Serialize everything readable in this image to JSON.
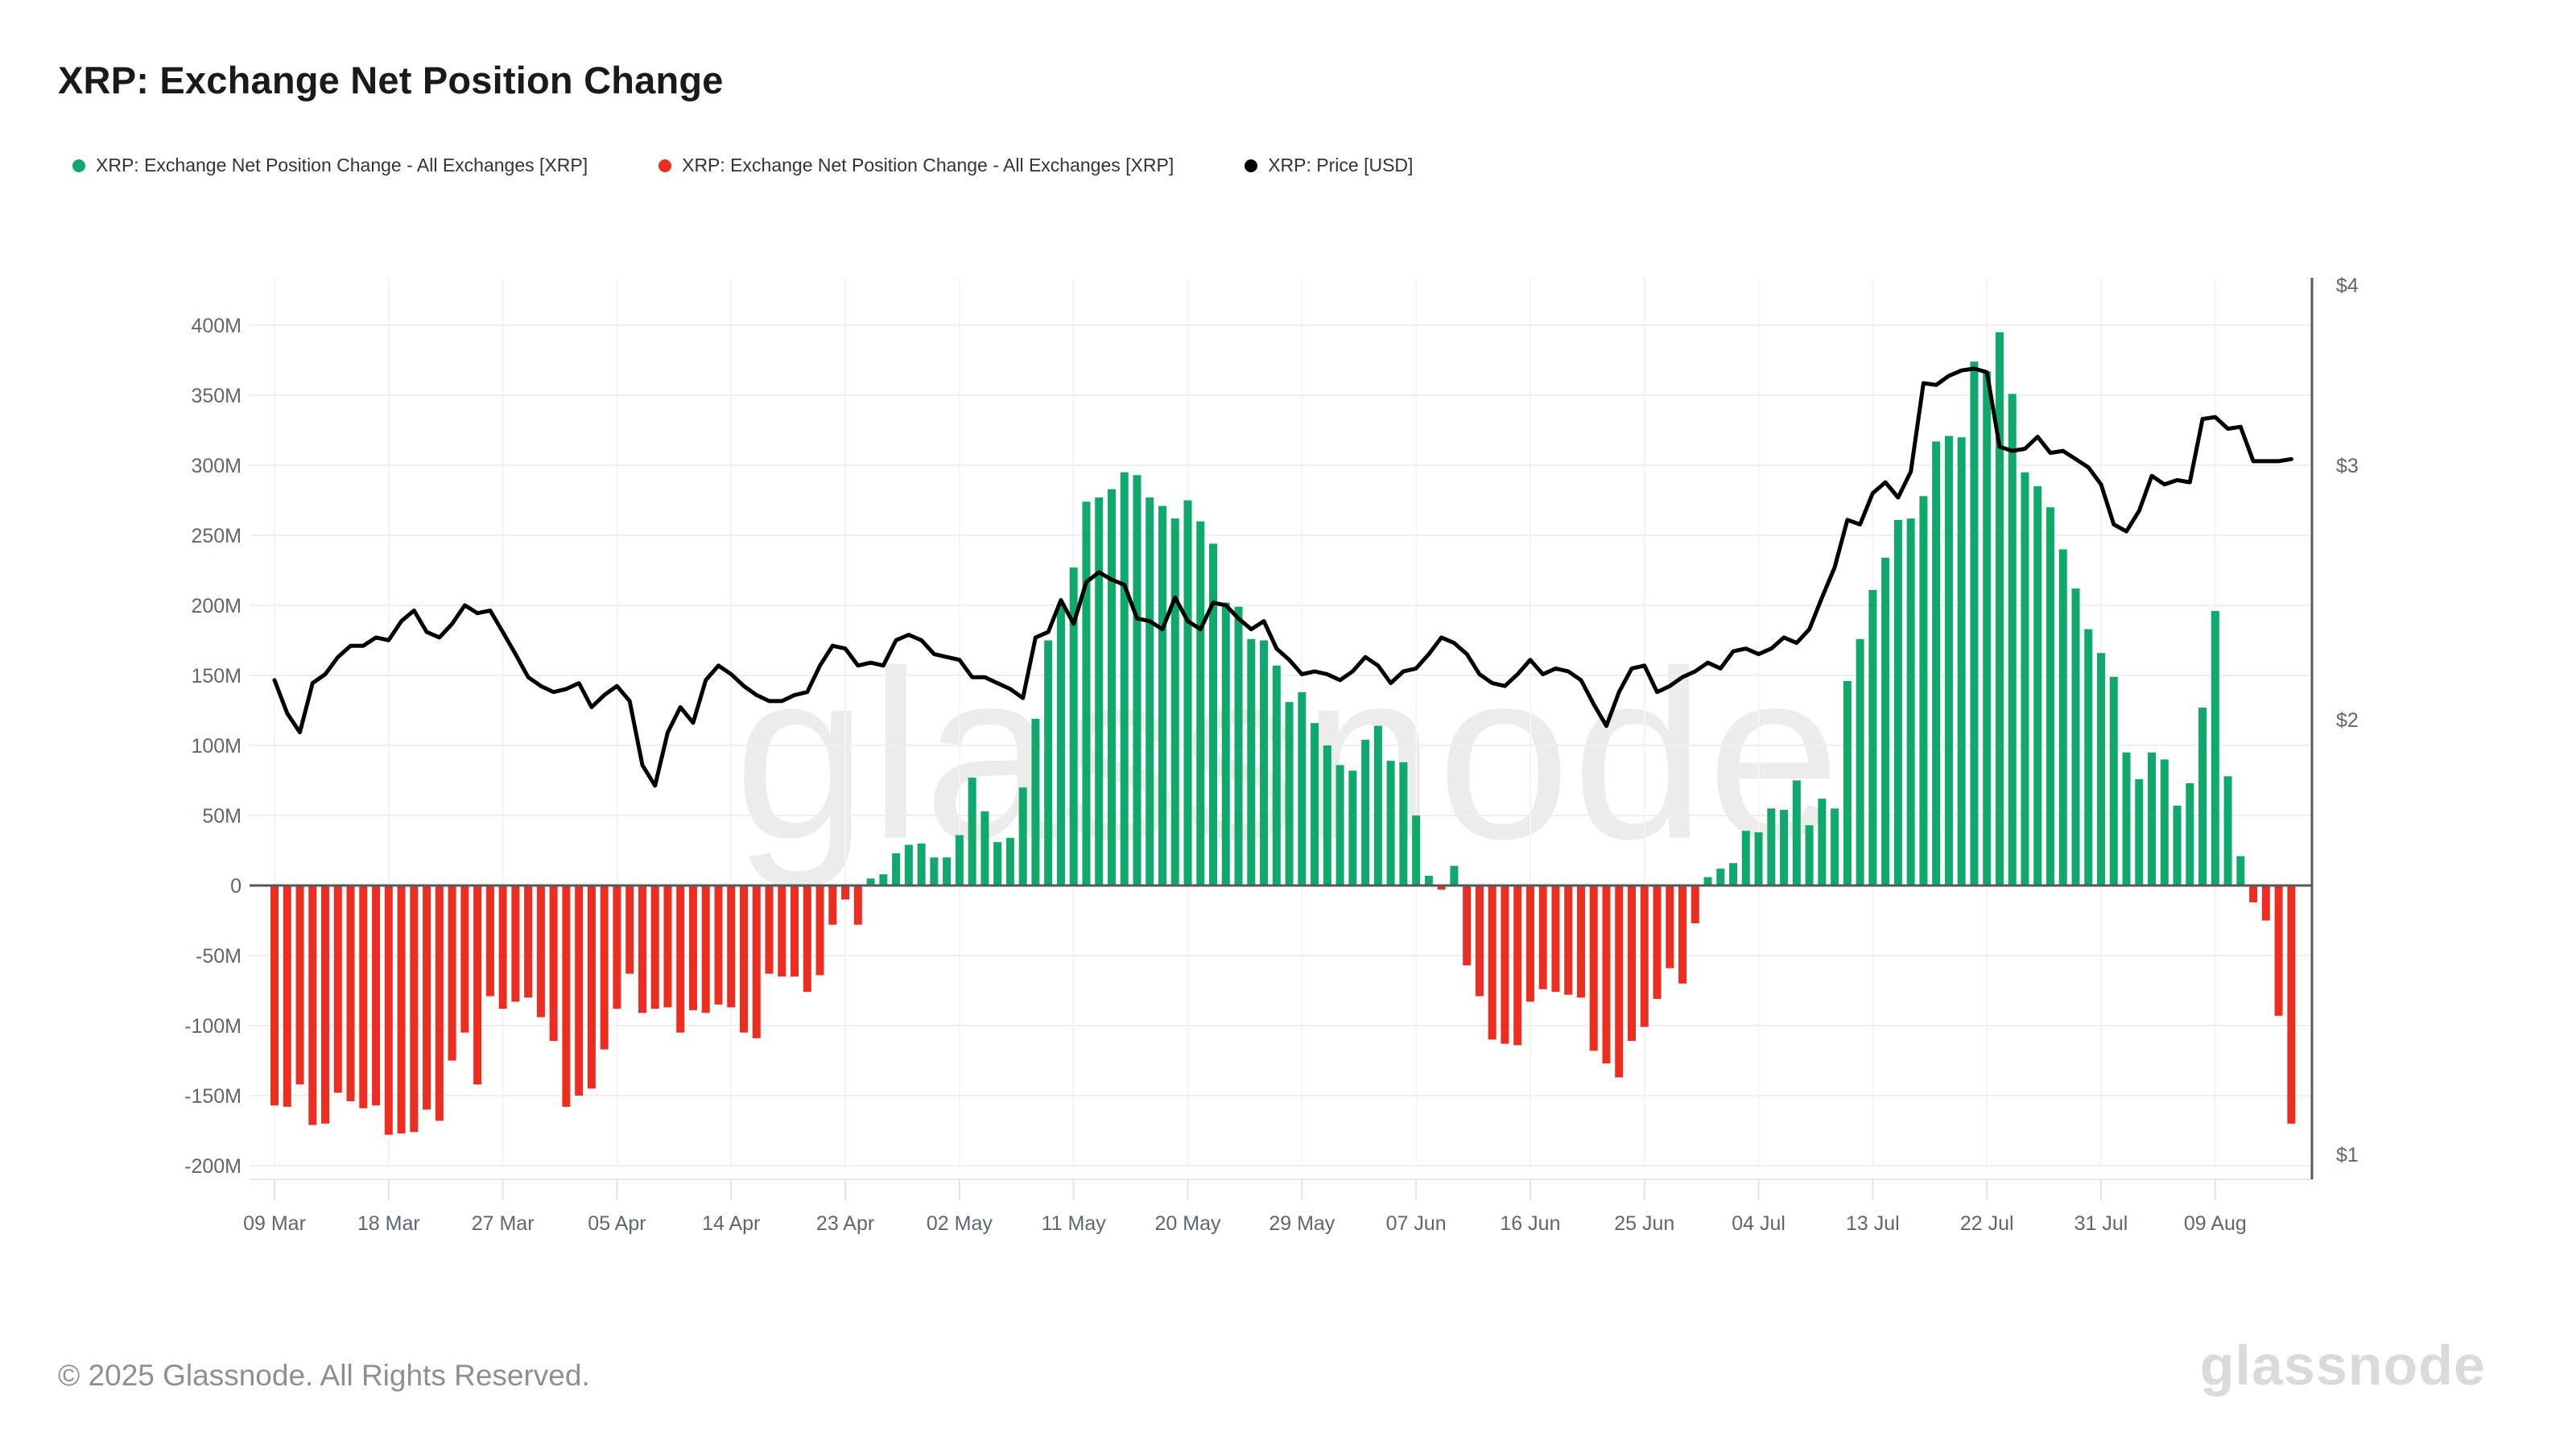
{
  "page": {
    "title": "XRP: Exchange Net Position Change",
    "footer": "© 2025 Glassnode. All Rights Reserved.",
    "watermark": "glassnode",
    "logo": "glassnode"
  },
  "legend": [
    {
      "label": "XRP: Exchange Net Position Change - All Exchanges [XRP]",
      "color": "#0fa96b"
    },
    {
      "label": "XRP: Exchange Net Position Change - All Exchanges [XRP]",
      "color": "#ee2d21"
    },
    {
      "label": "XRP: Price [USD]",
      "color": "#000000"
    }
  ],
  "chart_data": {
    "type": "combo",
    "title": "XRP: Exchange Net Position Change",
    "start_date": "2025-03-09",
    "interval": "1d",
    "x_tick_labels": [
      "09 Mar",
      "18 Mar",
      "27 Mar",
      "05 Apr",
      "14 Apr",
      "23 Apr",
      "02 May",
      "11 May",
      "20 May",
      "29 May",
      "07 Jun",
      "16 Jun",
      "25 Jun",
      "04 Jul",
      "13 Jul",
      "22 Jul",
      "31 Jul",
      "09 Aug"
    ],
    "left_axis": {
      "unit": "XRP (millions)",
      "labels": [
        "400M",
        "350M",
        "300M",
        "250M",
        "200M",
        "150M",
        "100M",
        "50M",
        "0",
        "-50M",
        "-100M",
        "-150M",
        "-200M"
      ],
      "values_m": [
        400,
        350,
        300,
        250,
        200,
        150,
        100,
        50,
        0,
        -50,
        -100,
        -150,
        -200
      ]
    },
    "right_axis": {
      "unit": "USD",
      "scale": "log",
      "labels": [
        "$4",
        "$3",
        "$2",
        "$1"
      ],
      "values_usd": [
        4,
        3,
        2,
        1
      ]
    },
    "grid": "horizontal-and-vertical-faint",
    "legend_position": "top-left",
    "series": [
      {
        "name": "XRP: Exchange Net Position Change - All Exchanges [XRP]",
        "type": "bar",
        "positive_color": "#0fa96b",
        "negative_color": "#ee2d21",
        "values_millions": [
          -157,
          -158,
          -142,
          -171,
          -170,
          -148,
          -154,
          -159,
          -157,
          -178,
          -177,
          -176,
          -160,
          -168,
          -125,
          -105,
          -142,
          -79,
          -88,
          -83,
          -80,
          -94,
          -111,
          -158,
          -150,
          -145,
          -117,
          -88,
          -63,
          -91,
          -88,
          -87,
          -105,
          -89,
          -91,
          -85,
          -87,
          -105,
          -109,
          -63,
          -65,
          -65,
          -76,
          -64,
          -28,
          -10,
          -28,
          5,
          8,
          23,
          29,
          30,
          20,
          20,
          36,
          77,
          53,
          31,
          34,
          70,
          119,
          175,
          201,
          227,
          274,
          277,
          283,
          295,
          293,
          277,
          271,
          262,
          275,
          260,
          244,
          202,
          199,
          176,
          175,
          157,
          131,
          138,
          116,
          100,
          86,
          82,
          104,
          114,
          89,
          88,
          50,
          7,
          -3,
          14,
          -57,
          -79,
          -110,
          -113,
          -114,
          -83,
          -74,
          -76,
          -78,
          -80,
          -118,
          -127,
          -137,
          -111,
          -101,
          -81,
          -59,
          -70,
          -27,
          6,
          12,
          16,
          39,
          38,
          55,
          54,
          75,
          43,
          62,
          55,
          146,
          176,
          211,
          234,
          261,
          262,
          278,
          317,
          321,
          320,
          374,
          367,
          395,
          351,
          295,
          285,
          270,
          240,
          212,
          183,
          166,
          149,
          95,
          76,
          95,
          90,
          57,
          73,
          127,
          196,
          78,
          21,
          -12,
          -25,
          -93,
          -170
        ]
      },
      {
        "name": "XRP: Price [USD]",
        "type": "line",
        "color": "#000000",
        "values_usd": [
          2.13,
          2.02,
          1.96,
          2.12,
          2.15,
          2.21,
          2.25,
          2.25,
          2.28,
          2.27,
          2.34,
          2.38,
          2.3,
          2.28,
          2.33,
          2.4,
          2.37,
          2.38,
          2.3,
          2.22,
          2.14,
          2.11,
          2.09,
          2.1,
          2.12,
          2.04,
          2.08,
          2.11,
          2.06,
          1.86,
          1.8,
          1.96,
          2.04,
          1.99,
          2.13,
          2.18,
          2.15,
          2.11,
          2.08,
          2.06,
          2.06,
          2.08,
          2.09,
          2.18,
          2.25,
          2.24,
          2.18,
          2.19,
          2.18,
          2.27,
          2.29,
          2.27,
          2.22,
          2.21,
          2.2,
          2.14,
          2.14,
          2.12,
          2.1,
          2.07,
          2.28,
          2.3,
          2.42,
          2.33,
          2.49,
          2.53,
          2.5,
          2.48,
          2.35,
          2.34,
          2.31,
          2.43,
          2.34,
          2.31,
          2.41,
          2.4,
          2.35,
          2.31,
          2.34,
          2.24,
          2.2,
          2.15,
          2.16,
          2.15,
          2.13,
          2.16,
          2.21,
          2.18,
          2.12,
          2.16,
          2.17,
          2.22,
          2.28,
          2.26,
          2.22,
          2.15,
          2.12,
          2.11,
          2.15,
          2.2,
          2.15,
          2.17,
          2.16,
          2.13,
          2.05,
          1.98,
          2.09,
          2.17,
          2.18,
          2.09,
          2.11,
          2.14,
          2.16,
          2.19,
          2.17,
          2.23,
          2.24,
          2.22,
          2.24,
          2.28,
          2.26,
          2.31,
          2.43,
          2.55,
          2.75,
          2.73,
          2.87,
          2.92,
          2.85,
          2.97,
          3.42,
          3.41,
          3.46,
          3.49,
          3.5,
          3.48,
          3.09,
          3.07,
          3.08,
          3.14,
          3.06,
          3.07,
          3.03,
          2.99,
          2.91,
          2.73,
          2.7,
          2.79,
          2.95,
          2.91,
          2.93,
          2.92,
          3.23,
          3.24,
          3.18,
          3.19,
          3.02,
          3.02,
          3.02,
          3.03
        ]
      }
    ]
  }
}
